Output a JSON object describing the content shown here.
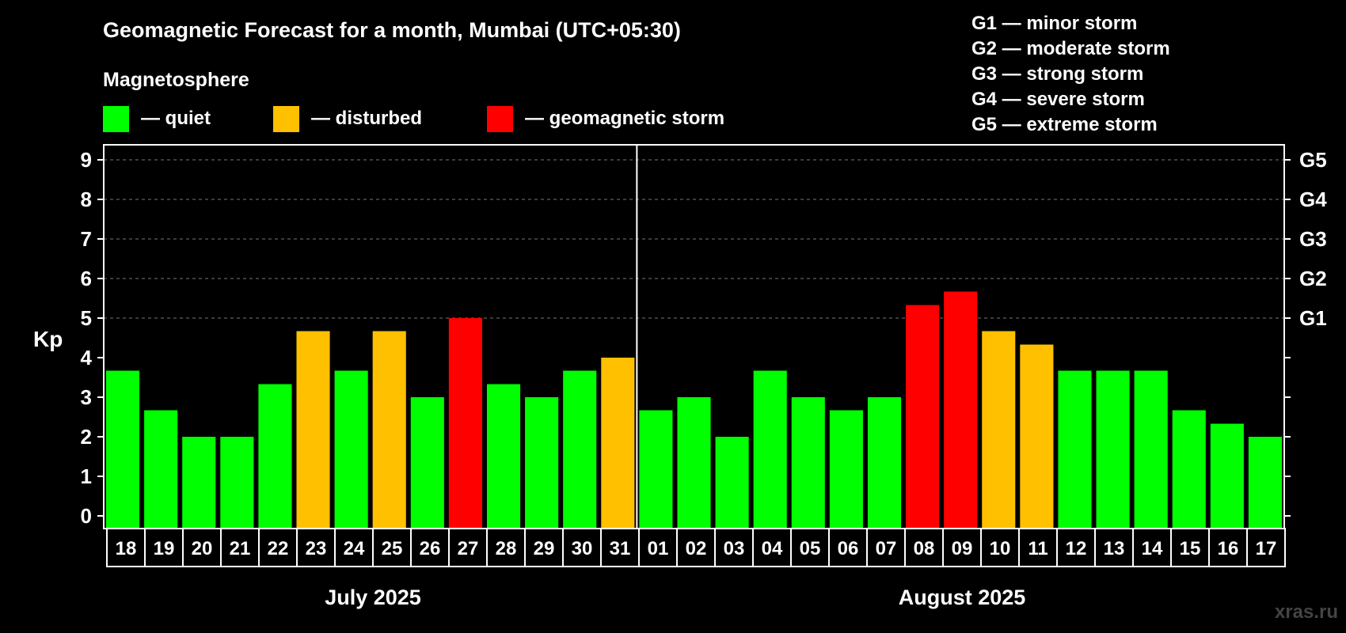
{
  "title": "Geomagnetic Forecast for a month, Mumbai (UTC+05:30)",
  "legend": {
    "heading": "Magnetosphere",
    "items": [
      {
        "label": "— quiet",
        "color": "#00ff00"
      },
      {
        "label": "— disturbed",
        "color": "#ffc000"
      },
      {
        "label": "— geomagnetic storm",
        "color": "#ff0000"
      }
    ]
  },
  "storm_scale": [
    "G1 — minor storm",
    "G2 — moderate storm",
    "G3 — strong storm",
    "G4 — severe storm",
    "G5 — extreme storm"
  ],
  "watermark": "xras.ru",
  "chart_data": {
    "type": "bar",
    "ylabel": "Kp",
    "ylim": [
      0,
      9
    ],
    "yticks": [
      "0",
      "1",
      "2",
      "3",
      "4",
      "5",
      "6",
      "7",
      "8",
      "9"
    ],
    "right_ticks": [
      {
        "value": 5,
        "label": "G1"
      },
      {
        "value": 6,
        "label": "G2"
      },
      {
        "value": 7,
        "label": "G3"
      },
      {
        "value": 8,
        "label": "G4"
      },
      {
        "value": 9,
        "label": "G5"
      }
    ],
    "grid": "dashed horizontal",
    "months": [
      {
        "label": "July 2025",
        "start": 0,
        "end": 13
      },
      {
        "label": "August 2025",
        "start": 14,
        "end": 30
      }
    ],
    "categories": [
      "18",
      "19",
      "20",
      "21",
      "22",
      "23",
      "24",
      "25",
      "26",
      "27",
      "28",
      "29",
      "30",
      "31",
      "01",
      "02",
      "03",
      "04",
      "05",
      "06",
      "07",
      "08",
      "09",
      "10",
      "11",
      "12",
      "13",
      "14",
      "15",
      "16",
      "17"
    ],
    "values": [
      3.67,
      2.67,
      2,
      2,
      3.33,
      4.67,
      3.67,
      4.67,
      3,
      5,
      3.33,
      3,
      3.67,
      4,
      2.67,
      3,
      2,
      3.67,
      3,
      2.67,
      3,
      5.33,
      5.67,
      4.67,
      4.33,
      3.67,
      3.67,
      3.67,
      2.67,
      2.33,
      2
    ],
    "status": [
      "quiet",
      "quiet",
      "quiet",
      "quiet",
      "quiet",
      "disturbed",
      "quiet",
      "disturbed",
      "quiet",
      "storm",
      "quiet",
      "quiet",
      "quiet",
      "disturbed",
      "quiet",
      "quiet",
      "quiet",
      "quiet",
      "quiet",
      "quiet",
      "quiet",
      "storm",
      "storm",
      "disturbed",
      "disturbed",
      "quiet",
      "quiet",
      "quiet",
      "quiet",
      "quiet",
      "quiet"
    ],
    "colors": {
      "quiet": "#00ff00",
      "disturbed": "#ffc000",
      "storm": "#ff0000"
    }
  }
}
